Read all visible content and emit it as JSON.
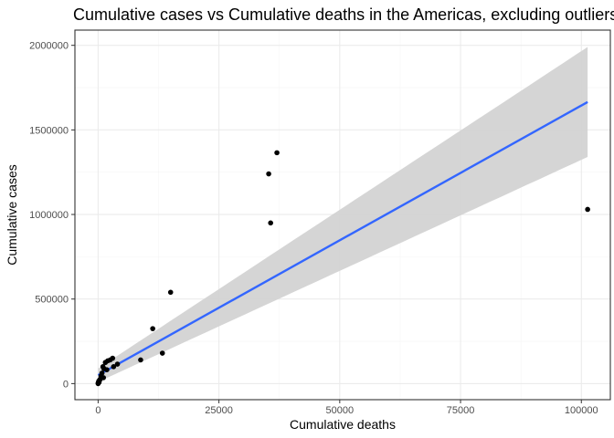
{
  "chart_data": {
    "type": "scatter",
    "title": "Cumulative cases vs Cumulative deaths in the Americas, excluding outliers",
    "xlabel": "Cumulative deaths",
    "ylabel": "Cumulative cases",
    "xlim": [
      -4800,
      106000
    ],
    "ylim": [
      -95000,
      2090000
    ],
    "x_ticks": [
      0,
      25000,
      50000,
      75000,
      100000
    ],
    "x_tick_labels": [
      "0",
      "25000",
      "50000",
      "75000",
      "100000"
    ],
    "y_ticks": [
      0,
      500000,
      1000000,
      1500000,
      2000000
    ],
    "y_tick_labels": [
      "0",
      "500000",
      "1000000",
      "1500000",
      "2000000"
    ],
    "grid": true,
    "theme": "bw",
    "points": [
      {
        "x": 0,
        "y": 0
      },
      {
        "x": 20,
        "y": 3000
      },
      {
        "x": 50,
        "y": 6000
      },
      {
        "x": 100,
        "y": 10000
      },
      {
        "x": 150,
        "y": 15000
      },
      {
        "x": 200,
        "y": 8000
      },
      {
        "x": 300,
        "y": 20000
      },
      {
        "x": 400,
        "y": 25000
      },
      {
        "x": 600,
        "y": 45000
      },
      {
        "x": 800,
        "y": 62000
      },
      {
        "x": 1000,
        "y": 100000
      },
      {
        "x": 1100,
        "y": 35000
      },
      {
        "x": 1200,
        "y": 88000
      },
      {
        "x": 1500,
        "y": 125000
      },
      {
        "x": 1800,
        "y": 82000
      },
      {
        "x": 2000,
        "y": 135000
      },
      {
        "x": 2500,
        "y": 140000
      },
      {
        "x": 3000,
        "y": 150000
      },
      {
        "x": 3200,
        "y": 100000
      },
      {
        "x": 4000,
        "y": 115000
      },
      {
        "x": 8800,
        "y": 140000
      },
      {
        "x": 11300,
        "y": 325000
      },
      {
        "x": 13300,
        "y": 180000
      },
      {
        "x": 15000,
        "y": 540000
      },
      {
        "x": 35300,
        "y": 1240000
      },
      {
        "x": 35700,
        "y": 950000
      },
      {
        "x": 37000,
        "y": 1365000
      },
      {
        "x": 101300,
        "y": 1030000
      }
    ],
    "fit": {
      "method": "lm",
      "x_range": [
        0,
        101300
      ],
      "line": [
        50000,
        1665000
      ],
      "band_lower": [
        10000,
        1340000
      ],
      "band_upper": [
        90000,
        1990000
      ]
    },
    "colors": {
      "points": "#000000",
      "fit_line": "#3366FF",
      "confidence_band": "#D3D3D3",
      "grid_major": "#EBEBEB",
      "grid_minor": "#F5F5F5",
      "panel_border": "#333333",
      "tick_text": "#4D4D4D"
    }
  }
}
